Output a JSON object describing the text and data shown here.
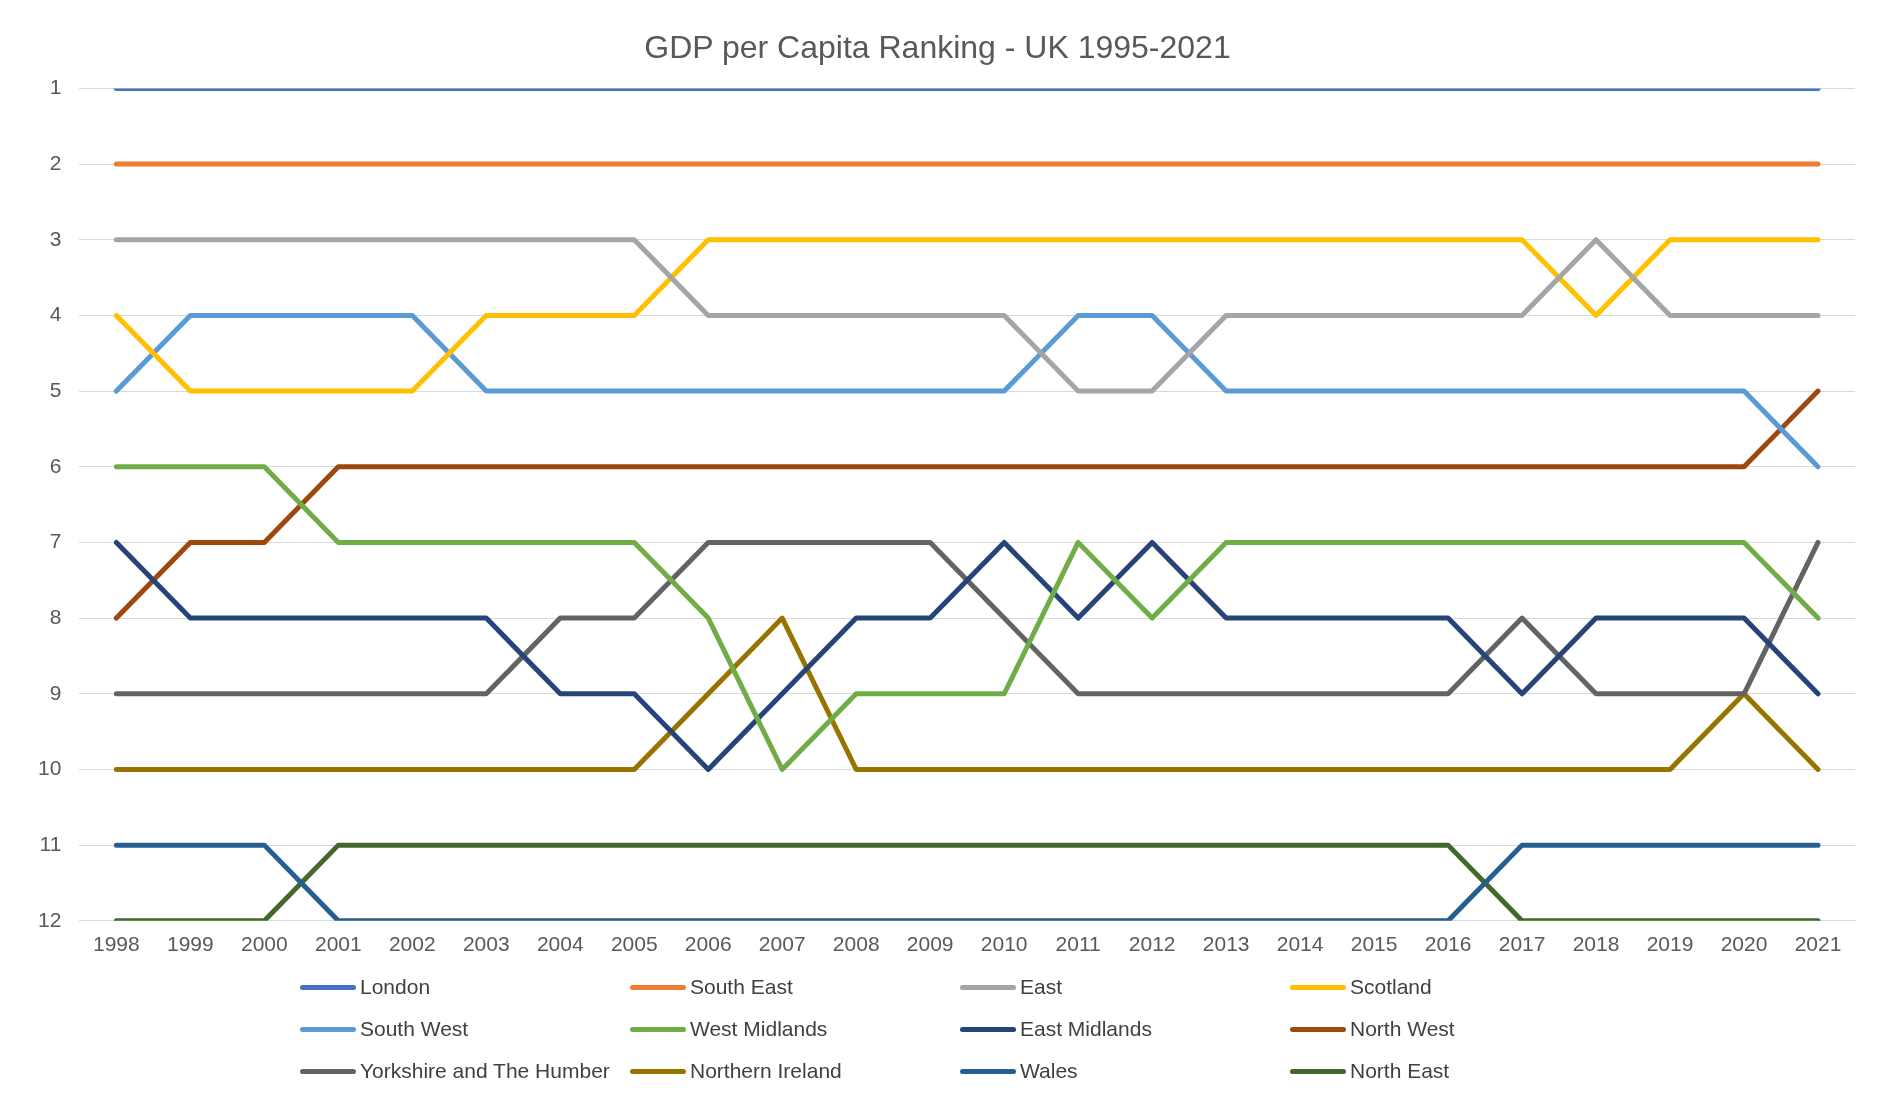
{
  "chart_data": {
    "type": "line",
    "title": "GDP per Capita Ranking - UK 1995-2021",
    "categories": [
      "1998",
      "1999",
      "2000",
      "2001",
      "2002",
      "2003",
      "2004",
      "2005",
      "2006",
      "2007",
      "2008",
      "2009",
      "2010",
      "2011",
      "2012",
      "2013",
      "2014",
      "2015",
      "2016",
      "2017",
      "2018",
      "2019",
      "2020",
      "2021"
    ],
    "ylim": [
      12,
      1
    ],
    "yticks": [
      1,
      2,
      3,
      4,
      5,
      6,
      7,
      8,
      9,
      10,
      11,
      12
    ],
    "grid": "y",
    "legend": "bottom",
    "marker": "none",
    "line_style": "solid",
    "series": [
      {
        "name": "London",
        "color": "#4472c4",
        "values": [
          1,
          1,
          1,
          1,
          1,
          1,
          1,
          1,
          1,
          1,
          1,
          1,
          1,
          1,
          1,
          1,
          1,
          1,
          1,
          1,
          1,
          1,
          1,
          1
        ]
      },
      {
        "name": "South East",
        "color": "#ed7d31",
        "values": [
          2,
          2,
          2,
          2,
          2,
          2,
          2,
          2,
          2,
          2,
          2,
          2,
          2,
          2,
          2,
          2,
          2,
          2,
          2,
          2,
          2,
          2,
          2,
          2
        ]
      },
      {
        "name": "East",
        "color": "#a5a5a5",
        "values": [
          3,
          3,
          3,
          3,
          3,
          3,
          3,
          3,
          4,
          4,
          4,
          4,
          4,
          5,
          5,
          4,
          4,
          4,
          4,
          4,
          3,
          4,
          4,
          4
        ]
      },
      {
        "name": "Scotland",
        "color": "#ffc000",
        "values": [
          4,
          5,
          5,
          5,
          5,
          4,
          4,
          4,
          3,
          3,
          3,
          3,
          3,
          3,
          3,
          3,
          3,
          3,
          3,
          3,
          4,
          3,
          3,
          3
        ]
      },
      {
        "name": "South West",
        "color": "#5b9bd5",
        "values": [
          5,
          4,
          4,
          4,
          4,
          5,
          5,
          5,
          5,
          5,
          5,
          5,
          5,
          4,
          4,
          5,
          5,
          5,
          5,
          5,
          5,
          5,
          5,
          6
        ]
      },
      {
        "name": "West Midlands",
        "color": "#70ad47",
        "values": [
          6,
          6,
          6,
          7,
          7,
          7,
          7,
          7,
          8,
          10,
          9,
          9,
          9,
          7,
          8,
          7,
          7,
          7,
          7,
          7,
          7,
          7,
          7,
          8
        ]
      },
      {
        "name": "East Midlands",
        "color": "#264478",
        "values": [
          7,
          8,
          8,
          8,
          8,
          8,
          9,
          9,
          10,
          9,
          8,
          8,
          7,
          8,
          7,
          8,
          8,
          8,
          8,
          9,
          8,
          8,
          8,
          9
        ]
      },
      {
        "name": "North West",
        "color": "#9e480e",
        "values": [
          8,
          7,
          7,
          6,
          6,
          6,
          6,
          6,
          6,
          6,
          6,
          6,
          6,
          6,
          6,
          6,
          6,
          6,
          6,
          6,
          6,
          6,
          6,
          5
        ]
      },
      {
        "name": "Yorkshire and The Humber",
        "color": "#636363",
        "values": [
          9,
          9,
          9,
          9,
          9,
          9,
          8,
          8,
          7,
          7,
          7,
          7,
          8,
          9,
          9,
          9,
          9,
          9,
          9,
          8,
          9,
          9,
          9,
          7
        ]
      },
      {
        "name": "Northern Ireland",
        "color": "#997300",
        "values": [
          10,
          10,
          10,
          10,
          10,
          10,
          10,
          10,
          9,
          8,
          10,
          10,
          10,
          10,
          10,
          10,
          10,
          10,
          10,
          10,
          10,
          10,
          9,
          10
        ]
      },
      {
        "name": "Wales",
        "color": "#255e91",
        "values": [
          11,
          11,
          11,
          12,
          12,
          12,
          12,
          12,
          12,
          12,
          12,
          12,
          12,
          12,
          12,
          12,
          12,
          12,
          12,
          11,
          11,
          11,
          11,
          11
        ]
      },
      {
        "name": "North East",
        "color": "#43682b",
        "values": [
          12,
          12,
          12,
          11,
          11,
          11,
          11,
          11,
          11,
          11,
          11,
          11,
          11,
          11,
          11,
          11,
          11,
          11,
          11,
          12,
          12,
          12,
          12,
          12
        ]
      }
    ]
  }
}
